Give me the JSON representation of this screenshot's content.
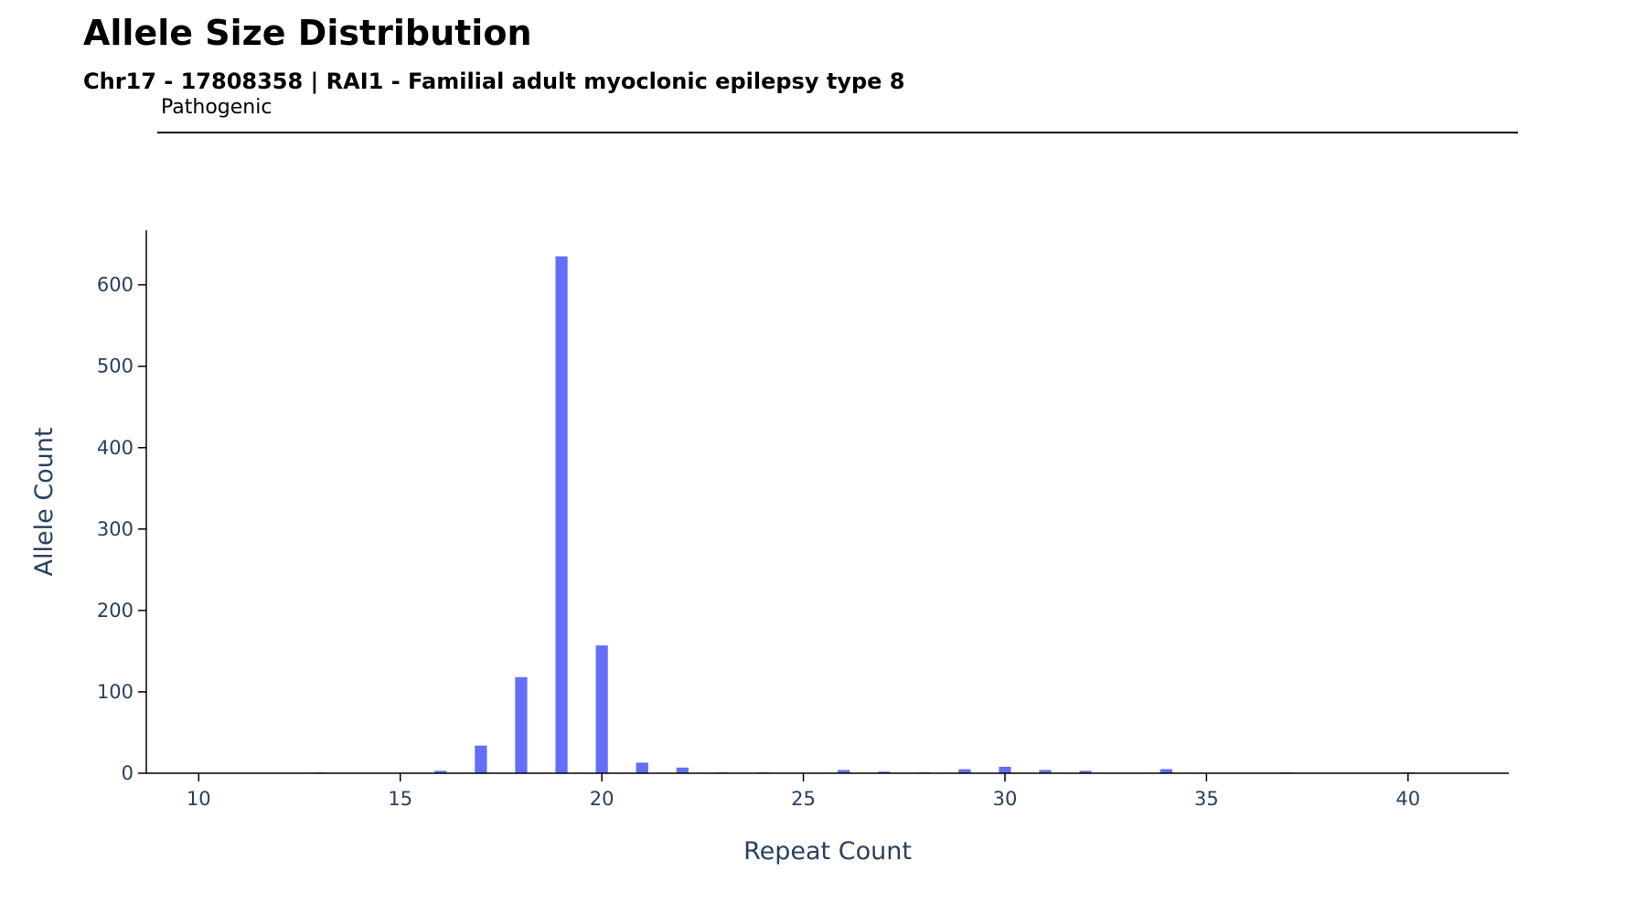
{
  "chart_data": {
    "type": "bar",
    "title": "Allele Size Distribution",
    "subtitle": "Chr17 - 17808358 | RAI1 - Familial adult myoclonic epilepsy type 8",
    "xlabel": "Repeat Count",
    "ylabel": "Allele Count",
    "xlim": [
      8.7,
      42.5
    ],
    "ylim": [
      0,
      667
    ],
    "xticks": [
      10,
      15,
      20,
      25,
      30,
      35,
      40
    ],
    "yticks": [
      0,
      100,
      200,
      300,
      400,
      500,
      600
    ],
    "grid": false,
    "x": [
      13,
      16,
      17,
      18,
      19,
      20,
      21,
      22,
      23,
      24,
      26,
      27,
      28,
      29,
      30,
      31,
      32,
      34,
      37,
      40
    ],
    "values": [
      1,
      3,
      34,
      118,
      635,
      157,
      13,
      7,
      1,
      1,
      4,
      2,
      1,
      5,
      8,
      4,
      3,
      5,
      1,
      1
    ],
    "bar_color": "#636efa",
    "annotation": {
      "label": "Pathogenic",
      "line_color": "#000000"
    }
  }
}
